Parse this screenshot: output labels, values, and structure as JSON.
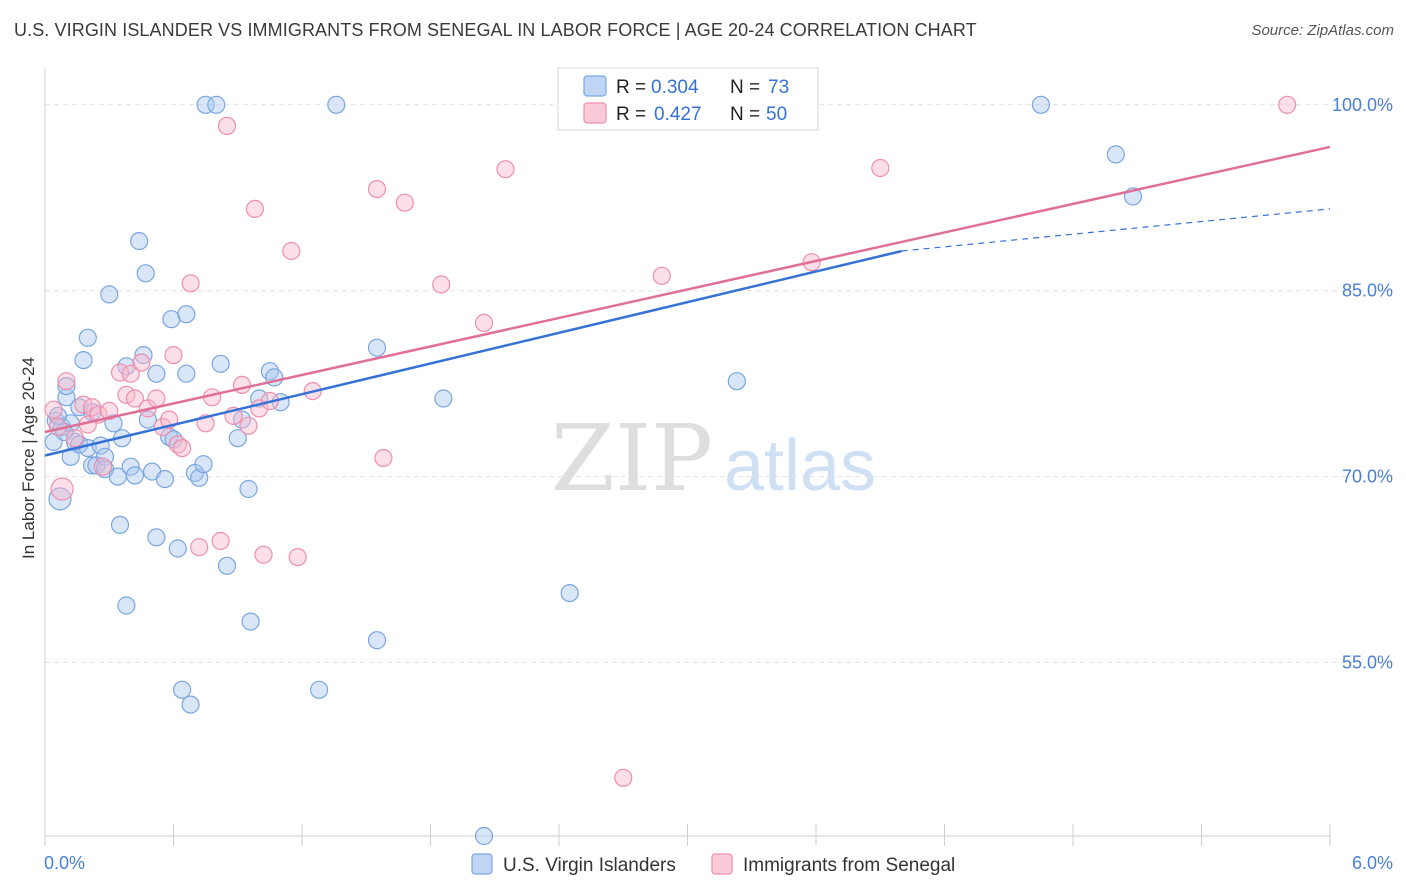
{
  "title": "U.S. VIRGIN ISLANDER VS IMMIGRANTS FROM SENEGAL IN LABOR FORCE | AGE 20-24 CORRELATION CHART",
  "source": "Source: ZipAtlas.com",
  "watermark": {
    "zip": "ZIP",
    "atlas": "atlas"
  },
  "legend_top": {
    "rows": [
      {
        "r_label": "R = ",
        "r_value": "0.304",
        "n_label": "N = ",
        "n_value": "73",
        "color": "#a8c8f0"
      },
      {
        "r_label": "R = ",
        "r_value": "0.427",
        "n_label": "N = ",
        "n_value": "50",
        "color": "#f8b8cc"
      }
    ]
  },
  "legend_bottom": {
    "items": [
      {
        "label": "U.S. Virgin Islanders",
        "color": "#a8c8f0"
      },
      {
        "label": "Immigrants from Senegal",
        "color": "#f8b8cc"
      }
    ]
  },
  "chart_data": {
    "type": "scatter",
    "title": "U.S. VIRGIN ISLANDER VS IMMIGRANTS FROM SENEGAL IN LABOR FORCE | AGE 20-24 CORRELATION CHART",
    "xlabel": "",
    "ylabel": "In Labor Force | Age 20-24",
    "xlim": [
      0.0,
      6.0
    ],
    "ylim": [
      41.0,
      102.0
    ],
    "x_tick_labels": [
      {
        "value": 0.0,
        "label": "0.0%"
      },
      {
        "value": 6.0,
        "label": "6.0%"
      }
    ],
    "y_ticks": [
      {
        "value": 55.0,
        "label": "55.0%"
      },
      {
        "value": 70.0,
        "label": "70.0%"
      },
      {
        "value": 85.0,
        "label": "85.0%"
      },
      {
        "value": 100.0,
        "label": "100.0%"
      }
    ],
    "grid": true,
    "legend_position": "top-center",
    "series": [
      {
        "name": "U.S. Virgin Islanders",
        "color": "#a8c8f0",
        "stroke": "#7aa6e0",
        "line_color": "#3572d6",
        "trend": {
          "x": [
            0.0,
            4.0
          ],
          "y": [
            71.7,
            88.2
          ],
          "dashed_to": [
            6.0,
            91.6
          ]
        },
        "points": [
          [
            0.05,
            74.5
          ],
          [
            0.07,
            68.2
          ],
          [
            0.08,
            74.0
          ],
          [
            0.1,
            76.4
          ],
          [
            0.1,
            77.3
          ],
          [
            0.12,
            74.3
          ],
          [
            0.12,
            71.6
          ],
          [
            0.14,
            72.8
          ],
          [
            0.16,
            75.6
          ],
          [
            0.16,
            72.6
          ],
          [
            0.18,
            79.4
          ],
          [
            0.2,
            81.2
          ],
          [
            0.2,
            72.3
          ],
          [
            0.22,
            70.9
          ],
          [
            0.24,
            70.9
          ],
          [
            0.26,
            72.5
          ],
          [
            0.28,
            71.6
          ],
          [
            0.28,
            70.6
          ],
          [
            0.3,
            84.7
          ],
          [
            0.32,
            74.3
          ],
          [
            0.34,
            70.0
          ],
          [
            0.35,
            66.1
          ],
          [
            0.36,
            73.1
          ],
          [
            0.38,
            59.6
          ],
          [
            0.4,
            70.8
          ],
          [
            0.42,
            70.1
          ],
          [
            0.44,
            89.0
          ],
          [
            0.46,
            79.8
          ],
          [
            0.47,
            86.4
          ],
          [
            0.48,
            74.6
          ],
          [
            0.5,
            70.4
          ],
          [
            0.52,
            78.3
          ],
          [
            0.52,
            65.1
          ],
          [
            0.56,
            69.8
          ],
          [
            0.58,
            73.2
          ],
          [
            0.59,
            82.7
          ],
          [
            0.6,
            73.0
          ],
          [
            0.62,
            64.2
          ],
          [
            0.64,
            52.8
          ],
          [
            0.66,
            83.1
          ],
          [
            0.66,
            78.3
          ],
          [
            0.68,
            51.6
          ],
          [
            0.7,
            70.3
          ],
          [
            0.72,
            69.9
          ],
          [
            0.74,
            71.0
          ],
          [
            0.75,
            100.0
          ],
          [
            0.8,
            100.0
          ],
          [
            0.82,
            79.1
          ],
          [
            0.85,
            62.8
          ],
          [
            0.9,
            73.1
          ],
          [
            0.92,
            74.6
          ],
          [
            0.95,
            69.0
          ],
          [
            0.96,
            58.3
          ],
          [
            1.0,
            76.3
          ],
          [
            1.05,
            78.5
          ],
          [
            1.07,
            78.0
          ],
          [
            1.1,
            76.0
          ],
          [
            1.28,
            52.8
          ],
          [
            1.36,
            100.0
          ],
          [
            1.55,
            80.4
          ],
          [
            1.55,
            56.8
          ],
          [
            1.86,
            76.3
          ],
          [
            2.05,
            41.0
          ],
          [
            2.45,
            60.6
          ],
          [
            3.23,
            77.7
          ],
          [
            4.65,
            100.0
          ],
          [
            5.0,
            96.0
          ],
          [
            5.08,
            92.6
          ],
          [
            0.04,
            72.8
          ],
          [
            0.06,
            74.9
          ],
          [
            0.09,
            73.6
          ],
          [
            0.22,
            75.2
          ],
          [
            0.38,
            78.9
          ]
        ]
      },
      {
        "name": "Immigrants from Senegal",
        "color": "#f8b8cc",
        "stroke": "#ee8fae",
        "line_color": "#e06f97",
        "trend": {
          "x": [
            0.0,
            6.0
          ],
          "y": [
            73.6,
            96.6
          ]
        },
        "points": [
          [
            0.04,
            75.4
          ],
          [
            0.06,
            74.0
          ],
          [
            0.08,
            69.0
          ],
          [
            0.1,
            77.7
          ],
          [
            0.14,
            73.1
          ],
          [
            0.18,
            75.8
          ],
          [
            0.2,
            74.2
          ],
          [
            0.22,
            75.6
          ],
          [
            0.25,
            75.0
          ],
          [
            0.27,
            70.8
          ],
          [
            0.3,
            75.3
          ],
          [
            0.35,
            78.4
          ],
          [
            0.38,
            76.6
          ],
          [
            0.4,
            78.3
          ],
          [
            0.42,
            76.3
          ],
          [
            0.45,
            79.2
          ],
          [
            0.48,
            75.5
          ],
          [
            0.52,
            76.3
          ],
          [
            0.55,
            74.0
          ],
          [
            0.58,
            74.6
          ],
          [
            0.6,
            79.8
          ],
          [
            0.62,
            72.6
          ],
          [
            0.64,
            72.3
          ],
          [
            0.68,
            85.6
          ],
          [
            0.72,
            64.3
          ],
          [
            0.75,
            74.3
          ],
          [
            0.78,
            76.4
          ],
          [
            0.82,
            64.8
          ],
          [
            0.85,
            98.3
          ],
          [
            0.88,
            74.9
          ],
          [
            0.92,
            77.4
          ],
          [
            0.95,
            74.1
          ],
          [
            0.98,
            91.6
          ],
          [
            1.0,
            75.5
          ],
          [
            1.02,
            63.7
          ],
          [
            1.05,
            76.1
          ],
          [
            1.15,
            88.2
          ],
          [
            1.18,
            63.5
          ],
          [
            1.25,
            76.9
          ],
          [
            1.55,
            93.2
          ],
          [
            1.58,
            71.5
          ],
          [
            1.68,
            92.1
          ],
          [
            1.85,
            85.5
          ],
          [
            2.05,
            82.4
          ],
          [
            2.15,
            94.8
          ],
          [
            2.7,
            45.7
          ],
          [
            2.88,
            86.2
          ],
          [
            3.58,
            87.3
          ],
          [
            3.9,
            94.9
          ],
          [
            5.8,
            100.0
          ]
        ]
      }
    ]
  }
}
